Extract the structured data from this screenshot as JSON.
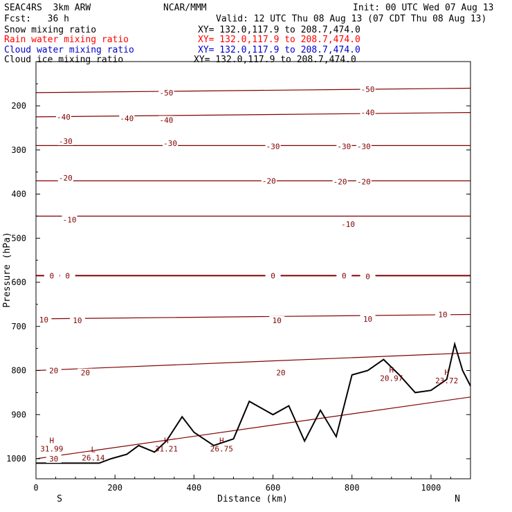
{
  "header": {
    "model": "SEAC4RS  3km ARW",
    "org": "NCAR/MMM",
    "init": "Init: 00 UTC Wed 07 Aug 13",
    "fcst": "Fcst:   36 h",
    "valid": "Valid: 12 UTC Thu 08 Aug 13 (07 CDT Thu 08 Aug 13)",
    "fields": [
      {
        "name": "Snow mixing ratio",
        "xy": "XY= 132.0,117.9 to 208.7,474.0",
        "color": "#000000"
      },
      {
        "name": "Rain water mixing ratio",
        "xy": "XY= 132.0,117.9 to 208.7,474.0",
        "color": "#ff0000"
      },
      {
        "name": "Cloud water mixing ratio",
        "xy": "XY= 132.0,117.9 to 208.7,474.0",
        "color": "#0000cc"
      },
      {
        "name": "Cloud ice mixing ratio",
        "xy": "XY= 132.0,117.9 to 208.7,474.0",
        "color": "#000000"
      }
    ]
  },
  "chart_data": {
    "type": "cross-section",
    "xlabel": "Distance (km)",
    "ylabel": "Pressure (hPa)",
    "xlim": [
      0,
      1100
    ],
    "ylim": [
      1050,
      100
    ],
    "xticks": [
      0,
      200,
      400,
      600,
      800,
      1000
    ],
    "yticks": [
      200,
      300,
      400,
      500,
      600,
      700,
      800,
      900,
      1000
    ],
    "endpoints": {
      "left": "S",
      "right": "N"
    },
    "contour_color": "#800000",
    "terrain_color": "#000000",
    "isotherms": [
      {
        "value": -50,
        "x": [
          0,
          1100
        ],
        "p": [
          170,
          160
        ]
      },
      {
        "value": -40,
        "x": [
          0,
          1100
        ],
        "p": [
          225,
          215
        ]
      },
      {
        "value": -30,
        "x": [
          0,
          1100
        ],
        "p": [
          290,
          290
        ]
      },
      {
        "value": -20,
        "x": [
          0,
          1100
        ],
        "p": [
          370,
          370
        ]
      },
      {
        "value": -10,
        "x": [
          0,
          1100
        ],
        "p": [
          450,
          450
        ]
      },
      {
        "value": 0,
        "x": [
          0,
          1100
        ],
        "p": [
          585,
          585
        ]
      },
      {
        "value": 10,
        "x": [
          0,
          1100
        ],
        "p": [
          683,
          673
        ]
      },
      {
        "value": 20,
        "x": [
          0,
          1100
        ],
        "p": [
          800,
          760
        ]
      },
      {
        "value": 30,
        "x": [
          0,
          1100
        ],
        "p": [
          1000,
          860
        ]
      }
    ],
    "terrain": {
      "x": [
        0,
        160,
        190,
        230,
        260,
        300,
        330,
        370,
        400,
        450,
        500,
        540,
        560,
        600,
        640,
        680,
        720,
        760,
        800,
        840,
        880,
        920,
        960,
        1000,
        1040,
        1060,
        1080,
        1100
      ],
      "p": [
        1010,
        1010,
        1000,
        990,
        970,
        985,
        960,
        905,
        940,
        970,
        955,
        870,
        880,
        900,
        880,
        960,
        890,
        950,
        810,
        800,
        775,
        810,
        850,
        845,
        820,
        740,
        800,
        835
      ]
    },
    "labels": [
      {
        "text": "-50",
        "x": 330,
        "p": 170
      },
      {
        "text": "-50",
        "x": 840,
        "p": 162
      },
      {
        "text": "-40",
        "x": 70,
        "p": 225
      },
      {
        "text": "-40",
        "x": 230,
        "p": 228
      },
      {
        "text": "-40",
        "x": 330,
        "p": 232
      },
      {
        "text": "-40",
        "x": 840,
        "p": 215
      },
      {
        "text": "-30",
        "x": 75,
        "p": 280
      },
      {
        "text": "-30",
        "x": 340,
        "p": 285
      },
      {
        "text": "-30",
        "x": 600,
        "p": 292
      },
      {
        "text": "-30",
        "x": 780,
        "p": 292
      },
      {
        "text": "-30",
        "x": 830,
        "p": 292
      },
      {
        "text": "-20",
        "x": 75,
        "p": 363
      },
      {
        "text": "-20",
        "x": 590,
        "p": 370
      },
      {
        "text": "-20",
        "x": 770,
        "p": 372
      },
      {
        "text": "-20",
        "x": 830,
        "p": 372
      },
      {
        "text": "-10",
        "x": 85,
        "p": 458
      },
      {
        "text": "-10",
        "x": 790,
        "p": 468
      },
      {
        "text": "0",
        "x": 40,
        "p": 585
      },
      {
        "text": "0",
        "x": 80,
        "p": 585
      },
      {
        "text": "0",
        "x": 600,
        "p": 585
      },
      {
        "text": "0",
        "x": 780,
        "p": 585
      },
      {
        "text": "0",
        "x": 840,
        "p": 587
      },
      {
        "text": "10",
        "x": 20,
        "p": 685
      },
      {
        "text": "10",
        "x": 105,
        "p": 686
      },
      {
        "text": "10",
        "x": 610,
        "p": 686
      },
      {
        "text": "10",
        "x": 840,
        "p": 683
      },
      {
        "text": "10",
        "x": 1030,
        "p": 673
      },
      {
        "text": "20",
        "x": 45,
        "p": 800
      },
      {
        "text": "20",
        "x": 125,
        "p": 805
      },
      {
        "text": "20",
        "x": 620,
        "p": 805
      },
      {
        "text": "30",
        "x": 45,
        "p": 1000
      }
    ],
    "highs_lows": [
      {
        "type": "H",
        "value": "31.99",
        "x": 40,
        "p": 965
      },
      {
        "type": "L",
        "value": "26.14",
        "x": 145,
        "p": 985
      },
      {
        "type": "H",
        "value": "31.21",
        "x": 330,
        "p": 965
      },
      {
        "type": "H",
        "value": "26.75",
        "x": 470,
        "p": 965
      },
      {
        "type": "H",
        "value": "20.97",
        "x": 900,
        "p": 805
      },
      {
        "type": "H",
        "value": "23.72",
        "x": 1040,
        "p": 810
      }
    ]
  }
}
